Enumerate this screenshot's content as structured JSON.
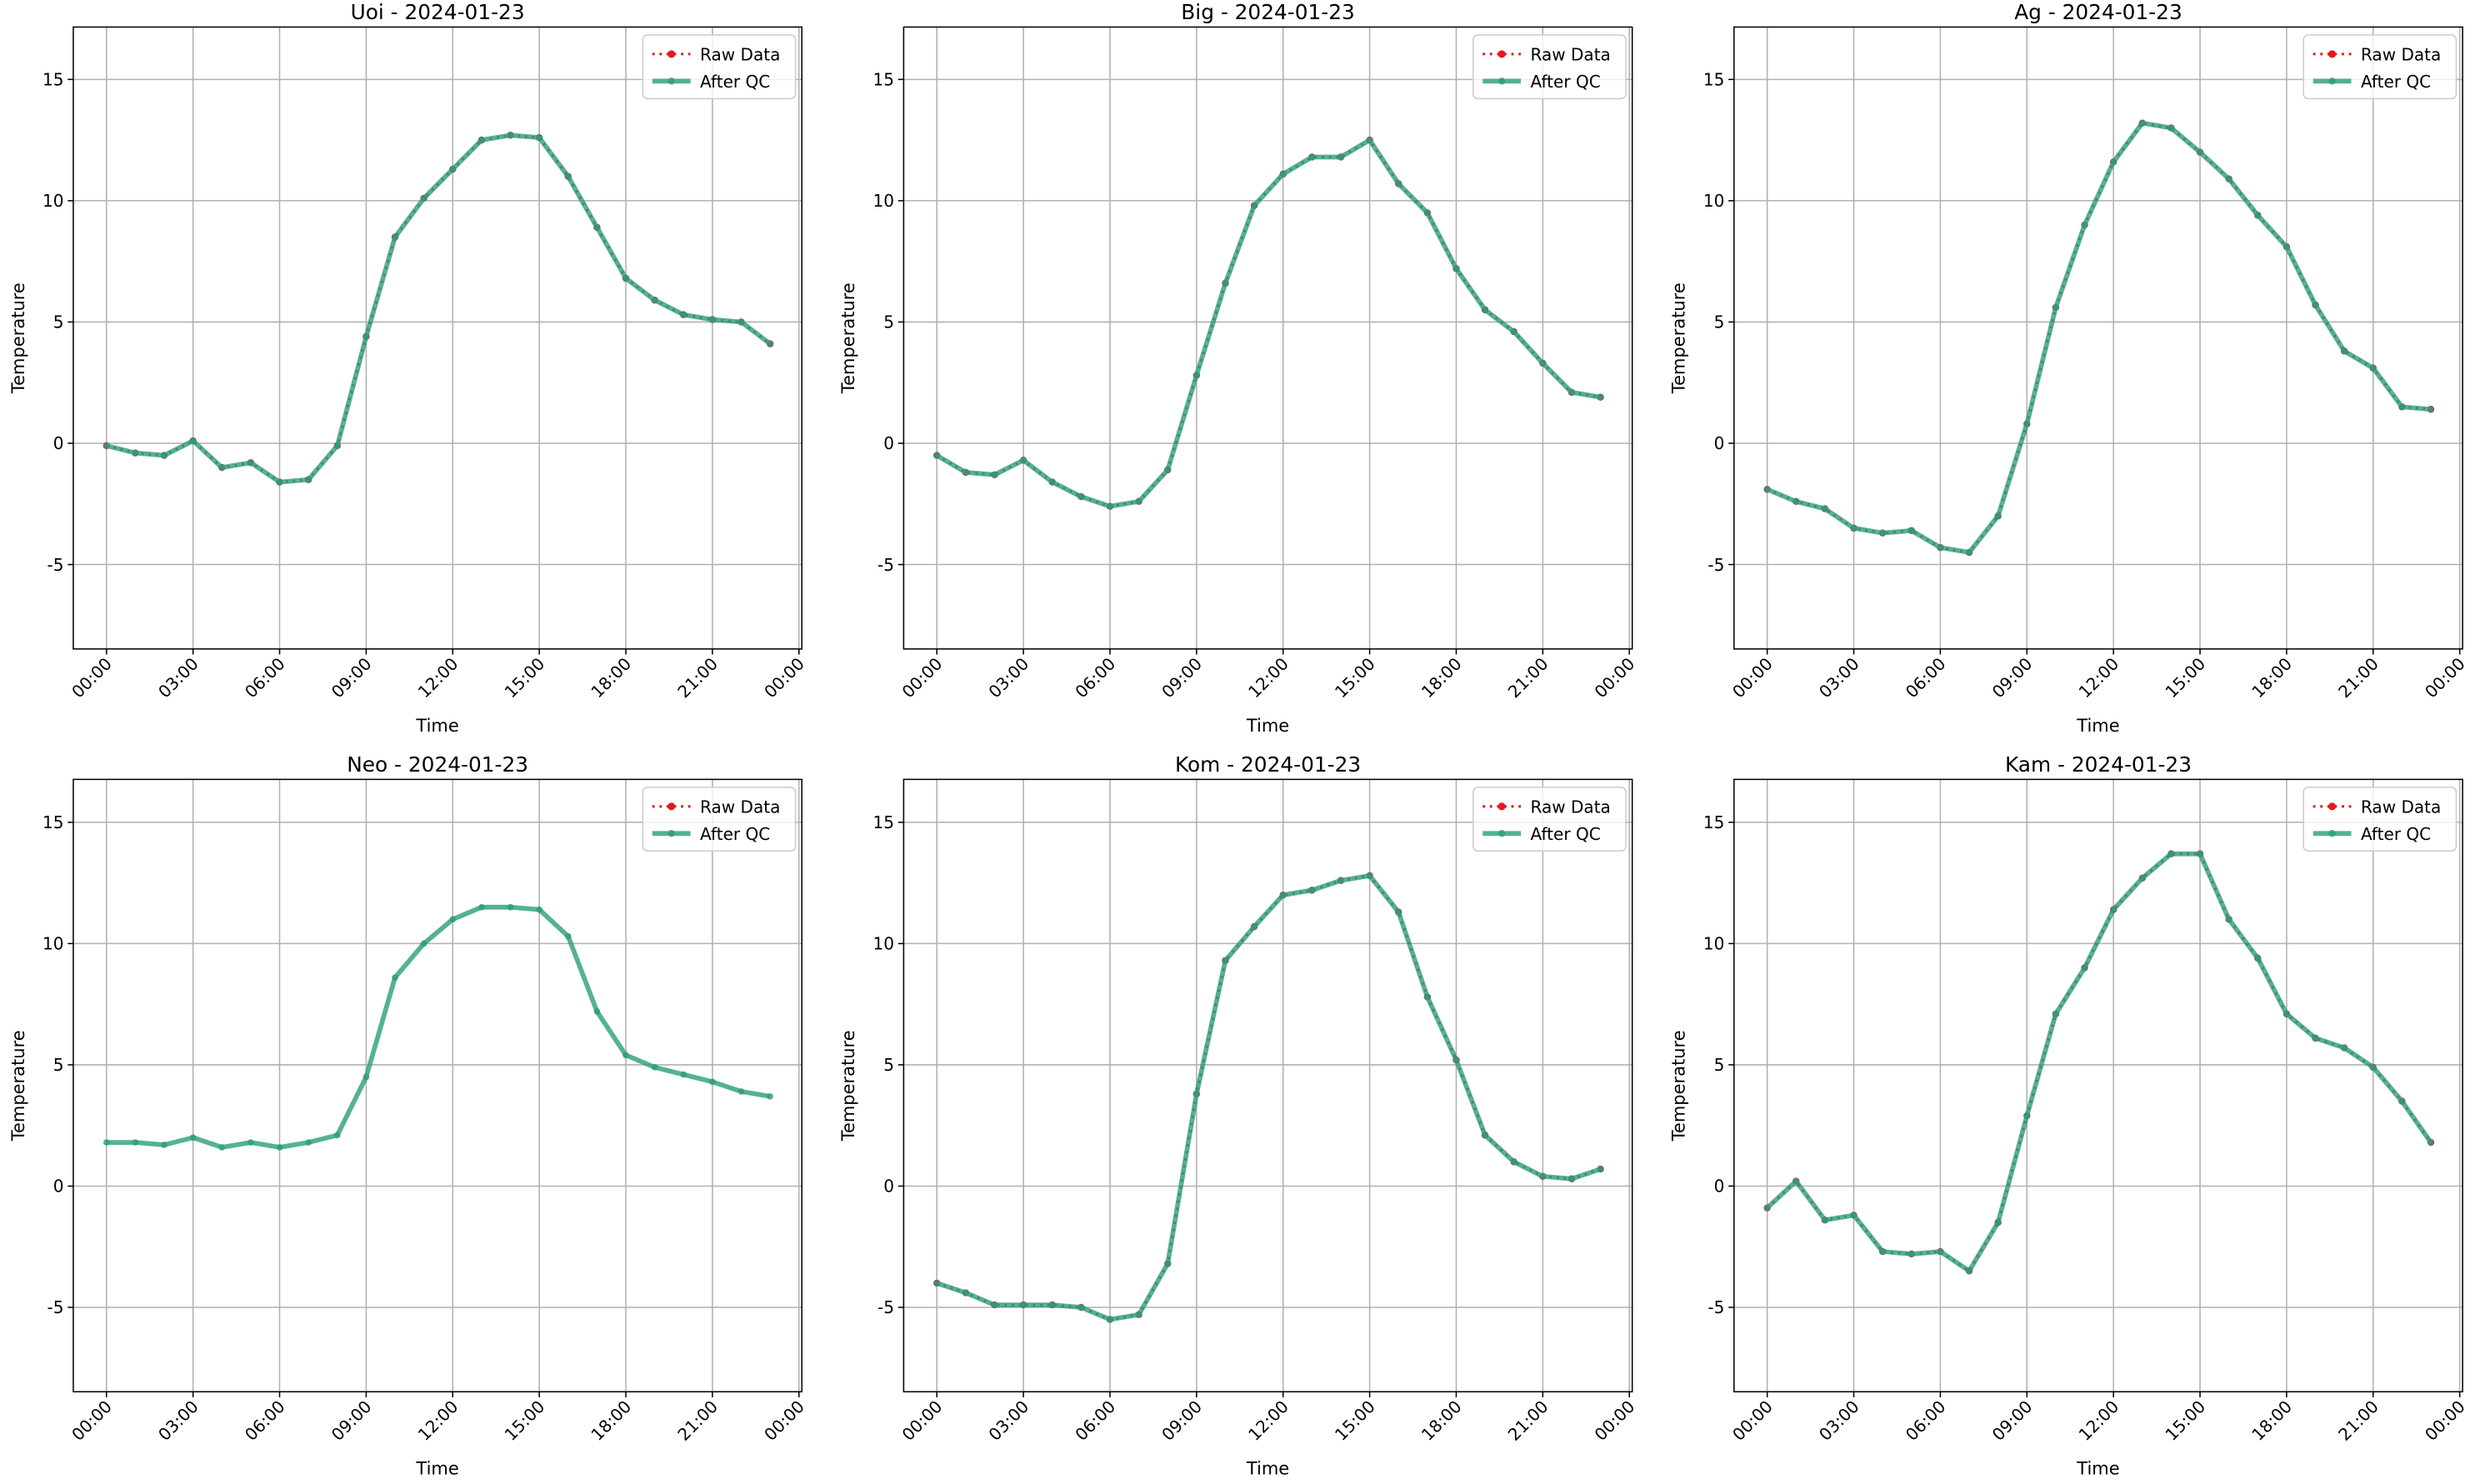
{
  "chart_data": [
    {
      "type": "line",
      "title": "Uoi - 2024-01-23",
      "xlabel": "Time",
      "ylabel": "Temperature",
      "grid": true,
      "legend": "upper right",
      "x": [
        0,
        1,
        2,
        3,
        4,
        5,
        6,
        7,
        8,
        9,
        10,
        11,
        12,
        13,
        14,
        15,
        16,
        17,
        18,
        19,
        20,
        21,
        22,
        23
      ],
      "xlim": [
        -1.15,
        24.1
      ],
      "xticks": [
        {
          "value": 0,
          "label": "00:00"
        },
        {
          "value": 3,
          "label": "03:00"
        },
        {
          "value": 6,
          "label": "06:00"
        },
        {
          "value": 9,
          "label": "09:00"
        },
        {
          "value": 12,
          "label": "12:00"
        },
        {
          "value": 15,
          "label": "15:00"
        },
        {
          "value": 18,
          "label": "18:00"
        },
        {
          "value": 21,
          "label": "21:00"
        },
        {
          "value": 24,
          "label": "00:00"
        }
      ],
      "ylim": [
        -8.48,
        17.16
      ],
      "yticks": [
        -5,
        0,
        5,
        10,
        15
      ],
      "series": [
        {
          "name": "Raw Data",
          "color": "#e41a1c",
          "values": [
            -0.1,
            -0.4,
            -0.5,
            0.1,
            -1.0,
            -0.8,
            -1.6,
            -1.5,
            -0.1,
            4.4,
            8.5,
            10.1,
            11.3,
            12.5,
            12.7,
            12.6,
            11.0,
            8.9,
            6.8,
            5.9,
            5.3,
            5.1,
            5.0,
            4.1
          ]
        },
        {
          "name": "After QC",
          "color": "#2a9d7c",
          "values": [
            -0.1,
            -0.4,
            -0.5,
            0.1,
            -1.0,
            -0.8,
            -1.6,
            -1.5,
            -0.1,
            4.4,
            8.5,
            10.1,
            11.3,
            12.5,
            12.7,
            12.6,
            11.0,
            8.9,
            6.8,
            5.9,
            5.3,
            5.1,
            5.0,
            4.1
          ]
        }
      ]
    },
    {
      "type": "line",
      "title": "Big - 2024-01-23",
      "xlabel": "Time",
      "ylabel": "Temperature",
      "grid": true,
      "legend": "upper right",
      "x": [
        0,
        1,
        2,
        3,
        4,
        5,
        6,
        7,
        8,
        9,
        10,
        11,
        12,
        13,
        14,
        15,
        16,
        17,
        18,
        19,
        20,
        21,
        22,
        23
      ],
      "xlim": [
        -1.15,
        24.1
      ],
      "xticks": [
        {
          "value": 0,
          "label": "00:00"
        },
        {
          "value": 3,
          "label": "03:00"
        },
        {
          "value": 6,
          "label": "06:00"
        },
        {
          "value": 9,
          "label": "09:00"
        },
        {
          "value": 12,
          "label": "12:00"
        },
        {
          "value": 15,
          "label": "15:00"
        },
        {
          "value": 18,
          "label": "18:00"
        },
        {
          "value": 21,
          "label": "21:00"
        },
        {
          "value": 24,
          "label": "00:00"
        }
      ],
      "ylim": [
        -8.48,
        17.16
      ],
      "yticks": [
        -5,
        0,
        5,
        10,
        15
      ],
      "series": [
        {
          "name": "Raw Data",
          "color": "#e41a1c",
          "values": [
            -0.5,
            -1.2,
            -1.3,
            -0.7,
            -1.6,
            -2.2,
            -2.6,
            -2.4,
            -1.1,
            2.8,
            6.6,
            9.8,
            11.1,
            11.8,
            11.8,
            12.5,
            10.7,
            9.5,
            7.2,
            5.5,
            4.6,
            3.3,
            2.1,
            1.9
          ]
        },
        {
          "name": "After QC",
          "color": "#2a9d7c",
          "values": [
            -0.5,
            -1.2,
            -1.3,
            -0.7,
            -1.6,
            -2.2,
            -2.6,
            -2.4,
            -1.1,
            2.8,
            6.6,
            9.8,
            11.1,
            11.8,
            11.8,
            12.5,
            10.7,
            9.5,
            7.2,
            5.5,
            4.6,
            3.3,
            2.1,
            1.9
          ]
        }
      ]
    },
    {
      "type": "line",
      "title": "Ag - 2024-01-23",
      "xlabel": "Time",
      "ylabel": "Temperature",
      "grid": true,
      "legend": "upper right",
      "x": [
        0,
        1,
        2,
        3,
        4,
        5,
        6,
        7,
        8,
        9,
        10,
        11,
        12,
        13,
        14,
        15,
        16,
        17,
        18,
        19,
        20,
        21,
        22,
        23
      ],
      "xlim": [
        -1.15,
        24.1
      ],
      "xticks": [
        {
          "value": 0,
          "label": "00:00"
        },
        {
          "value": 3,
          "label": "03:00"
        },
        {
          "value": 6,
          "label": "06:00"
        },
        {
          "value": 9,
          "label": "09:00"
        },
        {
          "value": 12,
          "label": "12:00"
        },
        {
          "value": 15,
          "label": "15:00"
        },
        {
          "value": 18,
          "label": "18:00"
        },
        {
          "value": 21,
          "label": "21:00"
        },
        {
          "value": 24,
          "label": "00:00"
        }
      ],
      "ylim": [
        -8.48,
        17.16
      ],
      "yticks": [
        -5,
        0,
        5,
        10,
        15
      ],
      "series": [
        {
          "name": "Raw Data",
          "color": "#e41a1c",
          "values": [
            -1.9,
            -2.4,
            -2.7,
            -3.5,
            -3.7,
            -3.6,
            -4.3,
            -4.5,
            -3.0,
            0.8,
            5.6,
            9.0,
            11.6,
            13.2,
            13.0,
            12.0,
            10.9,
            9.4,
            8.1,
            5.7,
            3.8,
            3.1,
            1.5,
            1.4
          ]
        },
        {
          "name": "After QC",
          "color": "#2a9d7c",
          "values": [
            -1.9,
            -2.4,
            -2.7,
            -3.5,
            -3.7,
            -3.6,
            -4.3,
            -4.5,
            -3.0,
            0.8,
            5.6,
            9.0,
            11.6,
            13.2,
            13.0,
            12.0,
            10.9,
            9.4,
            8.1,
            5.7,
            3.8,
            3.1,
            1.5,
            1.4
          ]
        }
      ]
    },
    {
      "type": "line",
      "title": "Neo - 2024-01-23",
      "xlabel": "Time",
      "ylabel": "Temperature",
      "grid": true,
      "legend": "upper right",
      "x": [
        0,
        1,
        2,
        3,
        4,
        5,
        6,
        7,
        8,
        9,
        10,
        11,
        12,
        13,
        14,
        15,
        16,
        17,
        18,
        19,
        20,
        21,
        22,
        23
      ],
      "xlim": [
        -1.15,
        24.1
      ],
      "xticks": [
        {
          "value": 0,
          "label": "00:00"
        },
        {
          "value": 3,
          "label": "03:00"
        },
        {
          "value": 6,
          "label": "06:00"
        },
        {
          "value": 9,
          "label": "09:00"
        },
        {
          "value": 12,
          "label": "12:00"
        },
        {
          "value": 15,
          "label": "15:00"
        },
        {
          "value": 18,
          "label": "18:00"
        },
        {
          "value": 21,
          "label": "21:00"
        },
        {
          "value": 24,
          "label": "00:00"
        }
      ],
      "ylim": [
        -8.48,
        16.77
      ],
      "yticks": [
        -5,
        0,
        5,
        10,
        15
      ],
      "series": [
        {
          "name": "Raw Data",
          "color": "#e41a1c",
          "values": [
            null,
            null,
            null,
            null,
            null,
            null,
            null,
            null,
            null,
            null,
            null,
            null,
            null,
            null,
            null,
            null,
            null,
            null,
            null,
            null,
            null,
            null,
            null,
            null
          ]
        },
        {
          "name": "After QC",
          "color": "#2a9d7c",
          "values": [
            1.8,
            1.8,
            1.7,
            2.0,
            1.6,
            1.8,
            1.6,
            1.8,
            2.1,
            4.5,
            8.6,
            10.0,
            11.0,
            11.5,
            11.5,
            11.4,
            10.3,
            7.2,
            5.4,
            4.9,
            4.6,
            4.3,
            3.9,
            3.7
          ]
        }
      ]
    },
    {
      "type": "line",
      "title": "Kom - 2024-01-23",
      "xlabel": "Time",
      "ylabel": "Temperature",
      "grid": true,
      "legend": "upper right",
      "x": [
        0,
        1,
        2,
        3,
        4,
        5,
        6,
        7,
        8,
        9,
        10,
        11,
        12,
        13,
        14,
        15,
        16,
        17,
        18,
        19,
        20,
        21,
        22,
        23
      ],
      "xlim": [
        -1.15,
        24.1
      ],
      "xticks": [
        {
          "value": 0,
          "label": "00:00"
        },
        {
          "value": 3,
          "label": "03:00"
        },
        {
          "value": 6,
          "label": "06:00"
        },
        {
          "value": 9,
          "label": "09:00"
        },
        {
          "value": 12,
          "label": "12:00"
        },
        {
          "value": 15,
          "label": "15:00"
        },
        {
          "value": 18,
          "label": "18:00"
        },
        {
          "value": 21,
          "label": "21:00"
        },
        {
          "value": 24,
          "label": "00:00"
        }
      ],
      "ylim": [
        -8.48,
        16.77
      ],
      "yticks": [
        -5,
        0,
        5,
        10,
        15
      ],
      "series": [
        {
          "name": "Raw Data",
          "color": "#e41a1c",
          "values": [
            -4.0,
            -4.4,
            -4.9,
            -4.9,
            -4.9,
            -5.0,
            -5.5,
            -5.3,
            -3.2,
            3.8,
            9.3,
            10.7,
            12.0,
            12.2,
            12.6,
            12.8,
            11.3,
            7.8,
            5.2,
            2.1,
            1.0,
            0.4,
            0.3,
            0.7
          ]
        },
        {
          "name": "After QC",
          "color": "#2a9d7c",
          "values": [
            -4.0,
            -4.4,
            -4.9,
            -4.9,
            -4.9,
            -5.0,
            -5.5,
            -5.3,
            -3.2,
            3.8,
            9.3,
            10.7,
            12.0,
            12.2,
            12.6,
            12.8,
            11.3,
            7.8,
            5.2,
            2.1,
            1.0,
            0.4,
            0.3,
            0.7
          ]
        }
      ]
    },
    {
      "type": "line",
      "title": "Kam - 2024-01-23",
      "xlabel": "Time",
      "ylabel": "Temperature",
      "grid": true,
      "legend": "upper right",
      "x": [
        0,
        1,
        2,
        3,
        4,
        5,
        6,
        7,
        8,
        9,
        10,
        11,
        12,
        13,
        14,
        15,
        16,
        17,
        18,
        19,
        20,
        21,
        22,
        23
      ],
      "xlim": [
        -1.15,
        24.1
      ],
      "xticks": [
        {
          "value": 0,
          "label": "00:00"
        },
        {
          "value": 3,
          "label": "03:00"
        },
        {
          "value": 6,
          "label": "06:00"
        },
        {
          "value": 9,
          "label": "09:00"
        },
        {
          "value": 12,
          "label": "12:00"
        },
        {
          "value": 15,
          "label": "15:00"
        },
        {
          "value": 18,
          "label": "18:00"
        },
        {
          "value": 21,
          "label": "21:00"
        },
        {
          "value": 24,
          "label": "00:00"
        }
      ],
      "ylim": [
        -8.48,
        16.77
      ],
      "yticks": [
        -5,
        0,
        5,
        10,
        15
      ],
      "series": [
        {
          "name": "Raw Data",
          "color": "#e41a1c",
          "values": [
            -0.9,
            0.2,
            -1.4,
            -1.2,
            -2.7,
            -2.8,
            -2.7,
            -3.5,
            -1.5,
            2.9,
            7.1,
            9.0,
            11.4,
            12.7,
            13.7,
            13.7,
            11.0,
            9.4,
            7.1,
            6.1,
            5.7,
            4.9,
            3.5,
            1.8
          ]
        },
        {
          "name": "After QC",
          "color": "#2a9d7c",
          "values": [
            -0.9,
            0.2,
            -1.4,
            -1.2,
            -2.7,
            -2.8,
            -2.7,
            -3.5,
            -1.5,
            2.9,
            7.1,
            9.0,
            11.4,
            12.7,
            13.7,
            13.7,
            11.0,
            9.4,
            7.1,
            6.1,
            5.7,
            4.9,
            3.5,
            1.8
          ]
        }
      ]
    }
  ]
}
